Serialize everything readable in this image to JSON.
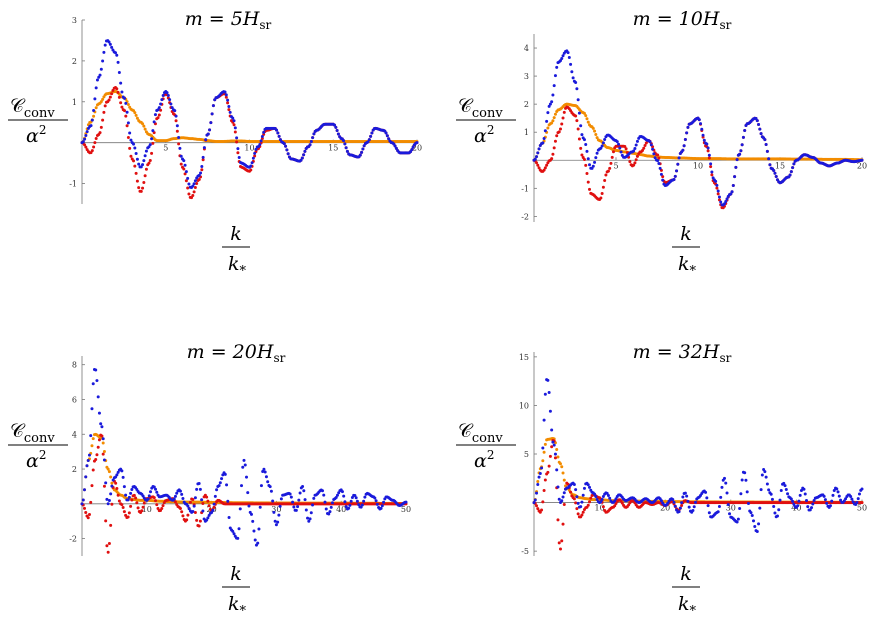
{
  "chart_data": [
    {
      "type": "scatter",
      "title": "m = 5H_sr",
      "title_parts": [
        "m = 5",
        "H",
        "sr"
      ],
      "ylabel_parts": [
        "𝒞",
        "conv",
        "α",
        "2"
      ],
      "xlabel_parts": [
        "k",
        "k",
        "*"
      ],
      "xlim": [
        0,
        20
      ],
      "ylim": [
        -1.5,
        3
      ],
      "xticks": [
        5,
        10,
        15,
        20
      ],
      "yticks": [
        -1,
        1,
        2,
        3
      ],
      "series": [
        {
          "color": "#1a1adb",
          "x": [
            0,
            0.5,
            1,
            1.5,
            2,
            2.5,
            3,
            3.5,
            4,
            4.5,
            5,
            5.5,
            6,
            6.5,
            7,
            7.5,
            8,
            8.5,
            9,
            9.5,
            10,
            10.5,
            11,
            11.5,
            12,
            12.5,
            13,
            13.5,
            14,
            14.5,
            15,
            15.5,
            16,
            16.5,
            17,
            17.5,
            18,
            18.5,
            19,
            19.5,
            20
          ],
          "values": [
            0,
            0.4,
            1.6,
            2.5,
            2.2,
            1.1,
            0,
            -0.6,
            -0.1,
            0.8,
            1.25,
            0.8,
            -0.4,
            -1.1,
            -0.8,
            0.2,
            1.1,
            1.25,
            0.6,
            -0.5,
            -0.6,
            -0.1,
            0.35,
            0.35,
            0,
            -0.4,
            -0.45,
            -0.1,
            0.3,
            0.45,
            0.45,
            0.1,
            -0.3,
            -0.35,
            0,
            0.35,
            0.3,
            0,
            -0.25,
            -0.25,
            0
          ]
        },
        {
          "color": "#e01010",
          "x": [
            0,
            0.5,
            1,
            1.5,
            2,
            2.5,
            3,
            3.5,
            4,
            4.5,
            5,
            5.5,
            6,
            6.5,
            7,
            7.5,
            8,
            8.5,
            9,
            9.5,
            10,
            10.5,
            11,
            11.5,
            12,
            12.5,
            13,
            13.5,
            14,
            14.5,
            15,
            15.5,
            16,
            16.5,
            17,
            17.5,
            18,
            18.5,
            19,
            19.5,
            20
          ],
          "values": [
            0,
            -0.25,
            0.2,
            1,
            1.35,
            0.8,
            -0.4,
            -1.2,
            -0.5,
            0.6,
            1.2,
            0.7,
            -0.6,
            -1.35,
            -0.9,
            0.2,
            1.1,
            1.2,
            0.5,
            -0.6,
            -0.7,
            -0.15,
            0.3,
            0.35,
            0,
            -0.4,
            -0.45,
            -0.1,
            0.3,
            0.45,
            0.45,
            0.1,
            -0.3,
            -0.35,
            0,
            0.35,
            0.3,
            0,
            -0.25,
            -0.25,
            0
          ]
        },
        {
          "color": "#f28c00",
          "x": [
            0,
            0.5,
            1,
            1.5,
            2,
            2.5,
            3,
            3.5,
            4,
            4.5,
            5,
            5.5,
            6,
            6.5,
            7,
            7.5,
            8,
            8.5,
            9,
            9.5,
            10,
            11,
            12,
            13,
            14,
            15,
            16,
            17,
            18,
            19,
            20
          ],
          "values": [
            0,
            0.5,
            0.95,
            1.2,
            1.25,
            1.1,
            0.8,
            0.5,
            0.2,
            0.05,
            0.05,
            0.1,
            0.12,
            0.1,
            0.08,
            0.05,
            0.03,
            0.03,
            0.04,
            0.04,
            0.03,
            0.03,
            0.03,
            0.03,
            0.03,
            0.03,
            0.03,
            0.03,
            0.03,
            0.03,
            0.03
          ]
        }
      ]
    },
    {
      "type": "scatter",
      "title": "m = 10H_sr",
      "title_parts": [
        "m = 10",
        "H",
        "sr"
      ],
      "ylabel_parts": [
        "𝒞",
        "conv",
        "α",
        "2"
      ],
      "xlabel_parts": [
        "k",
        "k",
        "*"
      ],
      "xlim": [
        0,
        20
      ],
      "ylim": [
        -2.2,
        4.5
      ],
      "xticks": [
        5,
        10,
        15,
        20
      ],
      "yticks": [
        -2,
        -1,
        1,
        2,
        3,
        4
      ],
      "series": [
        {
          "color": "#1a1adb",
          "x": [
            0,
            0.5,
            1,
            1.5,
            2,
            2.5,
            3,
            3.5,
            4,
            4.5,
            5,
            5.5,
            6,
            6.5,
            7,
            7.5,
            8,
            8.5,
            9,
            9.5,
            10,
            10.5,
            11,
            11.5,
            12,
            12.5,
            13,
            13.5,
            14,
            14.5,
            15,
            15.5,
            16,
            16.5,
            17,
            17.5,
            18,
            18.5,
            19,
            19.5,
            20
          ],
          "values": [
            0,
            0.6,
            2,
            3.5,
            3.9,
            2.8,
            0.8,
            -0.3,
            0.4,
            0.9,
            0.7,
            0.1,
            0.3,
            0.85,
            0.7,
            0,
            -0.9,
            -0.7,
            0.3,
            1.3,
            1.5,
            0.6,
            -0.7,
            -1.6,
            -1.2,
            0.2,
            1.3,
            1.5,
            0.8,
            -0.3,
            -0.8,
            -0.6,
            0,
            0.2,
            0.1,
            -0.1,
            -0.2,
            -0.1,
            0,
            -0.05,
            0
          ]
        },
        {
          "color": "#e01010",
          "x": [
            0,
            0.5,
            1,
            1.5,
            2,
            2.5,
            3,
            3.5,
            4,
            4.5,
            5,
            5.5,
            6,
            6.5,
            7,
            7.5,
            8,
            8.5,
            9,
            9.5,
            10,
            10.5,
            11,
            11.5,
            12,
            12.5,
            13,
            13.5,
            14,
            14.5,
            15,
            15.5,
            16,
            16.5,
            17,
            17.5,
            18,
            18.5,
            19,
            19.5,
            20
          ],
          "values": [
            0,
            -0.4,
            0,
            1,
            1.9,
            1.6,
            0.1,
            -1.2,
            -1.4,
            -0.4,
            0.5,
            0.5,
            -0.2,
            0.3,
            0.7,
            0.2,
            -0.8,
            -0.7,
            0.3,
            1.3,
            1.5,
            0.5,
            -0.8,
            -1.7,
            -1.2,
            0.2,
            1.3,
            1.5,
            0.8,
            -0.3,
            -0.8,
            -0.6,
            0,
            0.2,
            0.1,
            -0.1,
            -0.2,
            -0.1,
            0,
            -0.05,
            0
          ]
        },
        {
          "color": "#f28c00",
          "x": [
            0,
            0.5,
            1,
            1.5,
            2,
            2.5,
            3,
            3.5,
            4,
            4.5,
            5,
            5.5,
            6,
            6.5,
            7,
            7.5,
            8,
            9,
            10,
            11,
            12,
            13,
            14,
            15,
            16,
            17,
            18,
            19,
            20
          ],
          "values": [
            0,
            0.6,
            1.3,
            1.8,
            2.0,
            1.95,
            1.7,
            1.2,
            0.7,
            0.45,
            0.35,
            0.3,
            0.25,
            0.2,
            0.15,
            0.12,
            0.1,
            0.08,
            0.06,
            0.06,
            0.05,
            0.05,
            0.05,
            0.05,
            0.04,
            0.04,
            0.03,
            0.03,
            0.02
          ]
        }
      ]
    },
    {
      "type": "scatter",
      "title": "m = 20H_sr",
      "title_parts": [
        "m = 20",
        "H",
        "sr"
      ],
      "ylabel_parts": [
        "𝒞",
        "conv",
        "α",
        "2"
      ],
      "xlabel_parts": [
        "k",
        "k",
        "*"
      ],
      "xlim": [
        0,
        50
      ],
      "ylim": [
        -3,
        8.5
      ],
      "xticks": [
        10,
        20,
        30,
        40,
        50
      ],
      "yticks": [
        -2,
        2,
        4,
        6,
        8
      ],
      "series": [
        {
          "color": "#1a1adb",
          "x": [
            0,
            1,
            2,
            3,
            4,
            5,
            6,
            7,
            8,
            9,
            10,
            11,
            12,
            13,
            14,
            15,
            16,
            17,
            18,
            19,
            20,
            21,
            22,
            23,
            24,
            25,
            26,
            27,
            28,
            29,
            30,
            31,
            32,
            33,
            34,
            35,
            36,
            37,
            38,
            39,
            40,
            41,
            42,
            43,
            44,
            45,
            46,
            47,
            48,
            49,
            50
          ],
          "values": [
            0,
            2.5,
            7.8,
            4.5,
            0,
            1.5,
            2,
            0.2,
            1,
            0.6,
            0.2,
            1,
            0.4,
            0.5,
            0.2,
            0.8,
            0,
            -0.5,
            1.2,
            -1,
            -0.5,
            1,
            1.8,
            -1.5,
            -2,
            2.5,
            -0.5,
            -2.4,
            2,
            1,
            -1.2,
            0.5,
            0.6,
            -0.4,
            1,
            -1,
            0.5,
            0.8,
            -0.6,
            0.3,
            0.8,
            -0.3,
            0.5,
            -0.2,
            0.6,
            0.4,
            -0.3,
            0.4,
            0.2,
            -0.1,
            0.1
          ]
        },
        {
          "color": "#e01010",
          "x": [
            0,
            1,
            2,
            3,
            4,
            5,
            6,
            7,
            8,
            9,
            10,
            11,
            12,
            13,
            14,
            15,
            16,
            17,
            18,
            19,
            20,
            21,
            22,
            23,
            24,
            25,
            26,
            27,
            28,
            29,
            30,
            35,
            40,
            45,
            50
          ],
          "values": [
            0,
            -0.8,
            2.5,
            4,
            -2.8,
            1.3,
            0,
            -0.8,
            0.5,
            -0.5,
            0.3,
            0.4,
            -0.4,
            0.2,
            0.3,
            -0.2,
            -1,
            0.3,
            -1.3,
            0.5,
            -0.4,
            0.2,
            0,
            0,
            0,
            0,
            0,
            0,
            0,
            0,
            0,
            0,
            0,
            0,
            0
          ]
        },
        {
          "color": "#f28c00",
          "x": [
            0,
            1,
            2,
            3,
            4,
            5,
            6,
            7,
            8,
            9,
            10,
            12,
            14,
            16,
            18,
            20,
            25,
            30,
            35,
            40,
            45,
            50
          ],
          "values": [
            0,
            2.5,
            4,
            3.8,
            2,
            0.8,
            0.5,
            0.3,
            0.25,
            0.2,
            0.2,
            0.15,
            0.12,
            0.1,
            0.1,
            0.08,
            0.06,
            0.05,
            0.04,
            0.04,
            0.03,
            0.02
          ]
        }
      ]
    },
    {
      "type": "scatter",
      "title": "m = 32H_sr",
      "title_parts": [
        "m = 32",
        "H",
        "sr"
      ],
      "ylabel_parts": [
        "𝒞",
        "conv",
        "α",
        "2"
      ],
      "xlabel_parts": [
        "k",
        "k",
        "*"
      ],
      "xlim": [
        0,
        50
      ],
      "ylim": [
        -5.5,
        15.5
      ],
      "xticks": [
        10,
        20,
        30,
        40,
        50
      ],
      "yticks": [
        -5,
        5,
        10,
        15
      ],
      "series": [
        {
          "color": "#1a1adb",
          "x": [
            0,
            1,
            2,
            3,
            4,
            5,
            6,
            7,
            8,
            9,
            10,
            11,
            12,
            13,
            14,
            15,
            16,
            17,
            18,
            19,
            20,
            21,
            22,
            23,
            24,
            25,
            26,
            27,
            28,
            29,
            30,
            31,
            32,
            33,
            34,
            35,
            36,
            37,
            38,
            39,
            40,
            41,
            42,
            43,
            44,
            45,
            46,
            47,
            48,
            49,
            50
          ],
          "values": [
            0,
            3,
            12.8,
            6,
            0,
            1.5,
            2,
            -0.5,
            2,
            1,
            0,
            1,
            0,
            0.8,
            0.2,
            0.5,
            0,
            0.4,
            0,
            0.5,
            -0.3,
            0.4,
            -1,
            1,
            -1,
            0.5,
            1.2,
            -1.5,
            -1,
            2.5,
            -1.5,
            -2,
            3.2,
            -1,
            -3,
            3.4,
            1,
            -1.5,
            2,
            0.5,
            -0.5,
            1.5,
            -0.8,
            0.5,
            0.8,
            -0.5,
            1.5,
            0,
            0.8,
            -0.2,
            1.4
          ]
        },
        {
          "color": "#e01010",
          "x": [
            0,
            1,
            2,
            3,
            4,
            5,
            6,
            7,
            8,
            9,
            10,
            11,
            12,
            13,
            14,
            15,
            16,
            17,
            18,
            19,
            20,
            21,
            22,
            23,
            24,
            25,
            26,
            27,
            28,
            29,
            30,
            35,
            40,
            45,
            50
          ],
          "values": [
            0,
            -1,
            3,
            6.5,
            -4.8,
            2,
            0.5,
            -1.5,
            -0.5,
            0.8,
            0.5,
            -1,
            -0.5,
            0.3,
            -0.5,
            0.2,
            -0.5,
            0,
            -0.2,
            0,
            -0.3,
            0.1,
            -0.8,
            0.2,
            0,
            0,
            0,
            0,
            0,
            0,
            0,
            0,
            0,
            0,
            0
          ]
        },
        {
          "color": "#f28c00",
          "x": [
            0,
            1,
            2,
            3,
            4,
            5,
            6,
            7,
            8,
            9,
            10,
            12,
            14,
            16,
            18,
            20,
            25,
            30,
            35,
            40,
            45,
            50
          ],
          "values": [
            0,
            3.5,
            6.5,
            6.6,
            4,
            1.5,
            0.8,
            0.5,
            0.4,
            0.3,
            0.3,
            0.2,
            0.2,
            0.15,
            0.12,
            0.1,
            0.08,
            0.06,
            0.05,
            0.04,
            0.03,
            0.02
          ]
        }
      ]
    }
  ]
}
